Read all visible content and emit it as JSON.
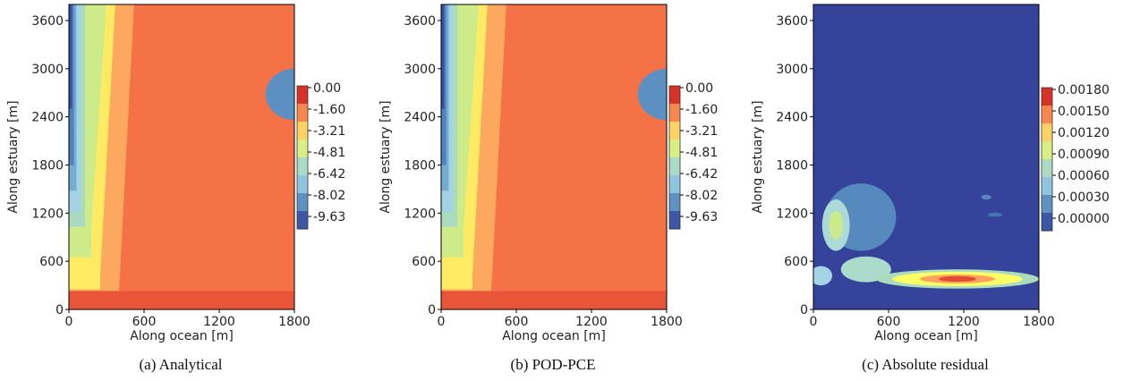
{
  "chart_data": [
    {
      "type": "heatmap",
      "subplot": "contourf",
      "caption": "(a) Analytical",
      "xlabel": "Along ocean [m]",
      "ylabel": "Along estuary [m]",
      "xlim": [
        0,
        1800
      ],
      "ylim": [
        0,
        3800
      ],
      "xticks": [
        "0",
        "600",
        "1200",
        "1800"
      ],
      "yticks": [
        "0",
        "600",
        "1200",
        "1800",
        "2400",
        "3000",
        "3600"
      ],
      "colorbar": {
        "ticks": [
          "0.00",
          "-1.60",
          "-3.21",
          "-4.81",
          "-6.42",
          "-8.02",
          "-9.63"
        ],
        "range": [
          -11.2,
          0.8
        ]
      },
      "field": {
        "floor_value": -0.5,
        "bands": [
          {
            "x_far": 400,
            "y_far": 2,
            "y_near": 230
          },
          {
            "x_far": 250,
            "y_far": 250,
            "y_near": 430
          },
          {
            "x_far": 180,
            "y_far": 650,
            "y_near": 1020
          },
          {
            "x_far": 130,
            "y_far": 1030,
            "y_near": 3800
          },
          {
            "x_far": 90,
            "y_far": 1220,
            "y_near": 3800
          },
          {
            "x_far": 60,
            "y_far": 1480,
            "y_near": 3800
          },
          {
            "x_far": 40,
            "y_far": 1800,
            "y_near": 3800
          },
          {
            "x_far": 25,
            "y_far": 2500,
            "y_near": 3800
          },
          {
            "x_far": 15,
            "y_far": 3200,
            "y_near": 3800
          }
        ],
        "anomaly": {
          "x": 1800,
          "y": 2680,
          "rx": 230,
          "ry": 320,
          "min_value": -9.0
        },
        "residual": false
      }
    },
    {
      "type": "heatmap",
      "subplot": "contourf",
      "caption": "(b) POD-PCE",
      "xlabel": "Along ocean [m]",
      "ylabel": "Along estuary [m]",
      "xlim": [
        0,
        1800
      ],
      "ylim": [
        0,
        3800
      ],
      "xticks": [
        "0",
        "600",
        "1200",
        "1800"
      ],
      "yticks": [
        "0",
        "600",
        "1200",
        "1800",
        "2400",
        "3000",
        "3600"
      ],
      "colorbar": {
        "ticks": [
          "0.00",
          "-1.60",
          "-3.21",
          "-4.81",
          "-6.42",
          "-8.02",
          "-9.63"
        ],
        "range": [
          -11.2,
          0.8
        ]
      },
      "field": {
        "floor_value": -0.5,
        "bands": [
          {
            "x_far": 400,
            "y_far": 2,
            "y_near": 230
          },
          {
            "x_far": 250,
            "y_far": 250,
            "y_near": 430
          },
          {
            "x_far": 180,
            "y_far": 650,
            "y_near": 1020
          },
          {
            "x_far": 130,
            "y_far": 1030,
            "y_near": 3800
          },
          {
            "x_far": 90,
            "y_far": 1220,
            "y_near": 3800
          },
          {
            "x_far": 60,
            "y_far": 1480,
            "y_near": 3800
          },
          {
            "x_far": 40,
            "y_far": 1800,
            "y_near": 3800
          },
          {
            "x_far": 25,
            "y_far": 2500,
            "y_near": 3800
          },
          {
            "x_far": 15,
            "y_far": 3200,
            "y_near": 3800
          }
        ],
        "anomaly": {
          "x": 1800,
          "y": 2680,
          "rx": 230,
          "ry": 320,
          "min_value": -9.0
        },
        "residual": false
      }
    },
    {
      "type": "heatmap",
      "subplot": "contourf",
      "caption": "(c) Absolute residual",
      "xlabel": "Along ocean [m]",
      "ylabel": "Along estuary [m]",
      "xlim": [
        0,
        1800
      ],
      "ylim": [
        0,
        3800
      ],
      "xticks": [
        "0",
        "600",
        "1200",
        "1800"
      ],
      "yticks": [
        "0",
        "600",
        "1200",
        "1800",
        "2400",
        "3000",
        "3600"
      ],
      "colorbar": {
        "ticks": [
          "0.00180",
          "0.00150",
          "0.00120",
          "0.00090",
          "0.00060",
          "0.00030",
          "0.00000"
        ],
        "range": [
          0.0,
          0.0021
        ]
      },
      "field": {
        "residual": true,
        "background_value": 5e-05,
        "blobs": [
          {
            "x": 1150,
            "y": 380,
            "rx": 650,
            "ry": 120,
            "value": 0.00095
          },
          {
            "x": 1150,
            "y": 380,
            "rx": 520,
            "ry": 90,
            "value": 0.0013
          },
          {
            "x": 1150,
            "y": 380,
            "rx": 300,
            "ry": 55,
            "value": 0.0016
          },
          {
            "x": 1150,
            "y": 380,
            "rx": 150,
            "ry": 35,
            "value": 0.0019
          },
          {
            "x": 420,
            "y": 500,
            "rx": 200,
            "ry": 160,
            "value": 0.0009
          },
          {
            "x": 180,
            "y": 1050,
            "rx": 110,
            "ry": 320,
            "value": 0.00085
          },
          {
            "x": 180,
            "y": 1050,
            "rx": 55,
            "ry": 180,
            "value": 0.00115
          },
          {
            "x": 60,
            "y": 420,
            "rx": 90,
            "ry": 120,
            "value": 0.00075
          },
          {
            "x": 380,
            "y": 1150,
            "rx": 280,
            "ry": 420,
            "value": 0.00035
          },
          {
            "x": 1380,
            "y": 1400,
            "rx": 40,
            "ry": 30,
            "value": 0.00035
          },
          {
            "x": 1450,
            "y": 1180,
            "rx": 60,
            "ry": 25,
            "value": 0.00025
          }
        ]
      }
    }
  ]
}
